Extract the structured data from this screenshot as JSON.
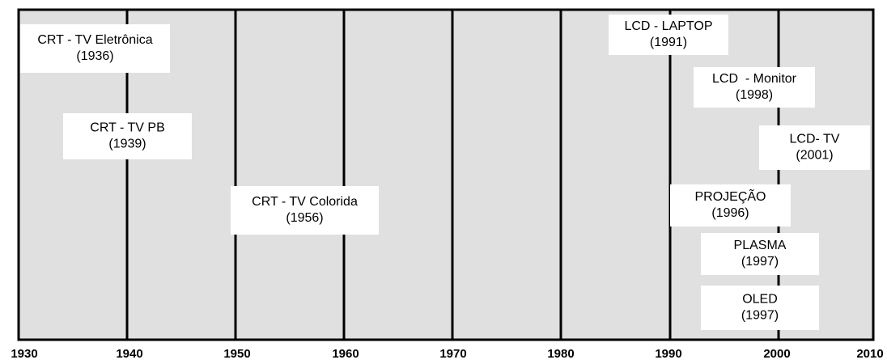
{
  "axis": {
    "labels": [
      "1930",
      "1940",
      "1950",
      "1960",
      "1970",
      "1980",
      "1990",
      "2000",
      "2010"
    ]
  },
  "events": [
    {
      "name": "CRT - TV Eletrônica",
      "year": "(1936)"
    },
    {
      "name": "CRT - TV PB",
      "year": "(1939)"
    },
    {
      "name": "CRT - TV Colorida",
      "year": "(1956)"
    },
    {
      "name": "LCD - LAPTOP",
      "year": "(1991)"
    },
    {
      "name": "LCD  - Monitor",
      "year": "(1998)"
    },
    {
      "name": "LCD- TV",
      "year": "(2001)"
    },
    {
      "name": "PROJEÇÃO",
      "year": "(1996)"
    },
    {
      "name": "PLASMA",
      "year": "(1997)"
    },
    {
      "name": "OLED",
      "year": "(1997)"
    }
  ]
}
